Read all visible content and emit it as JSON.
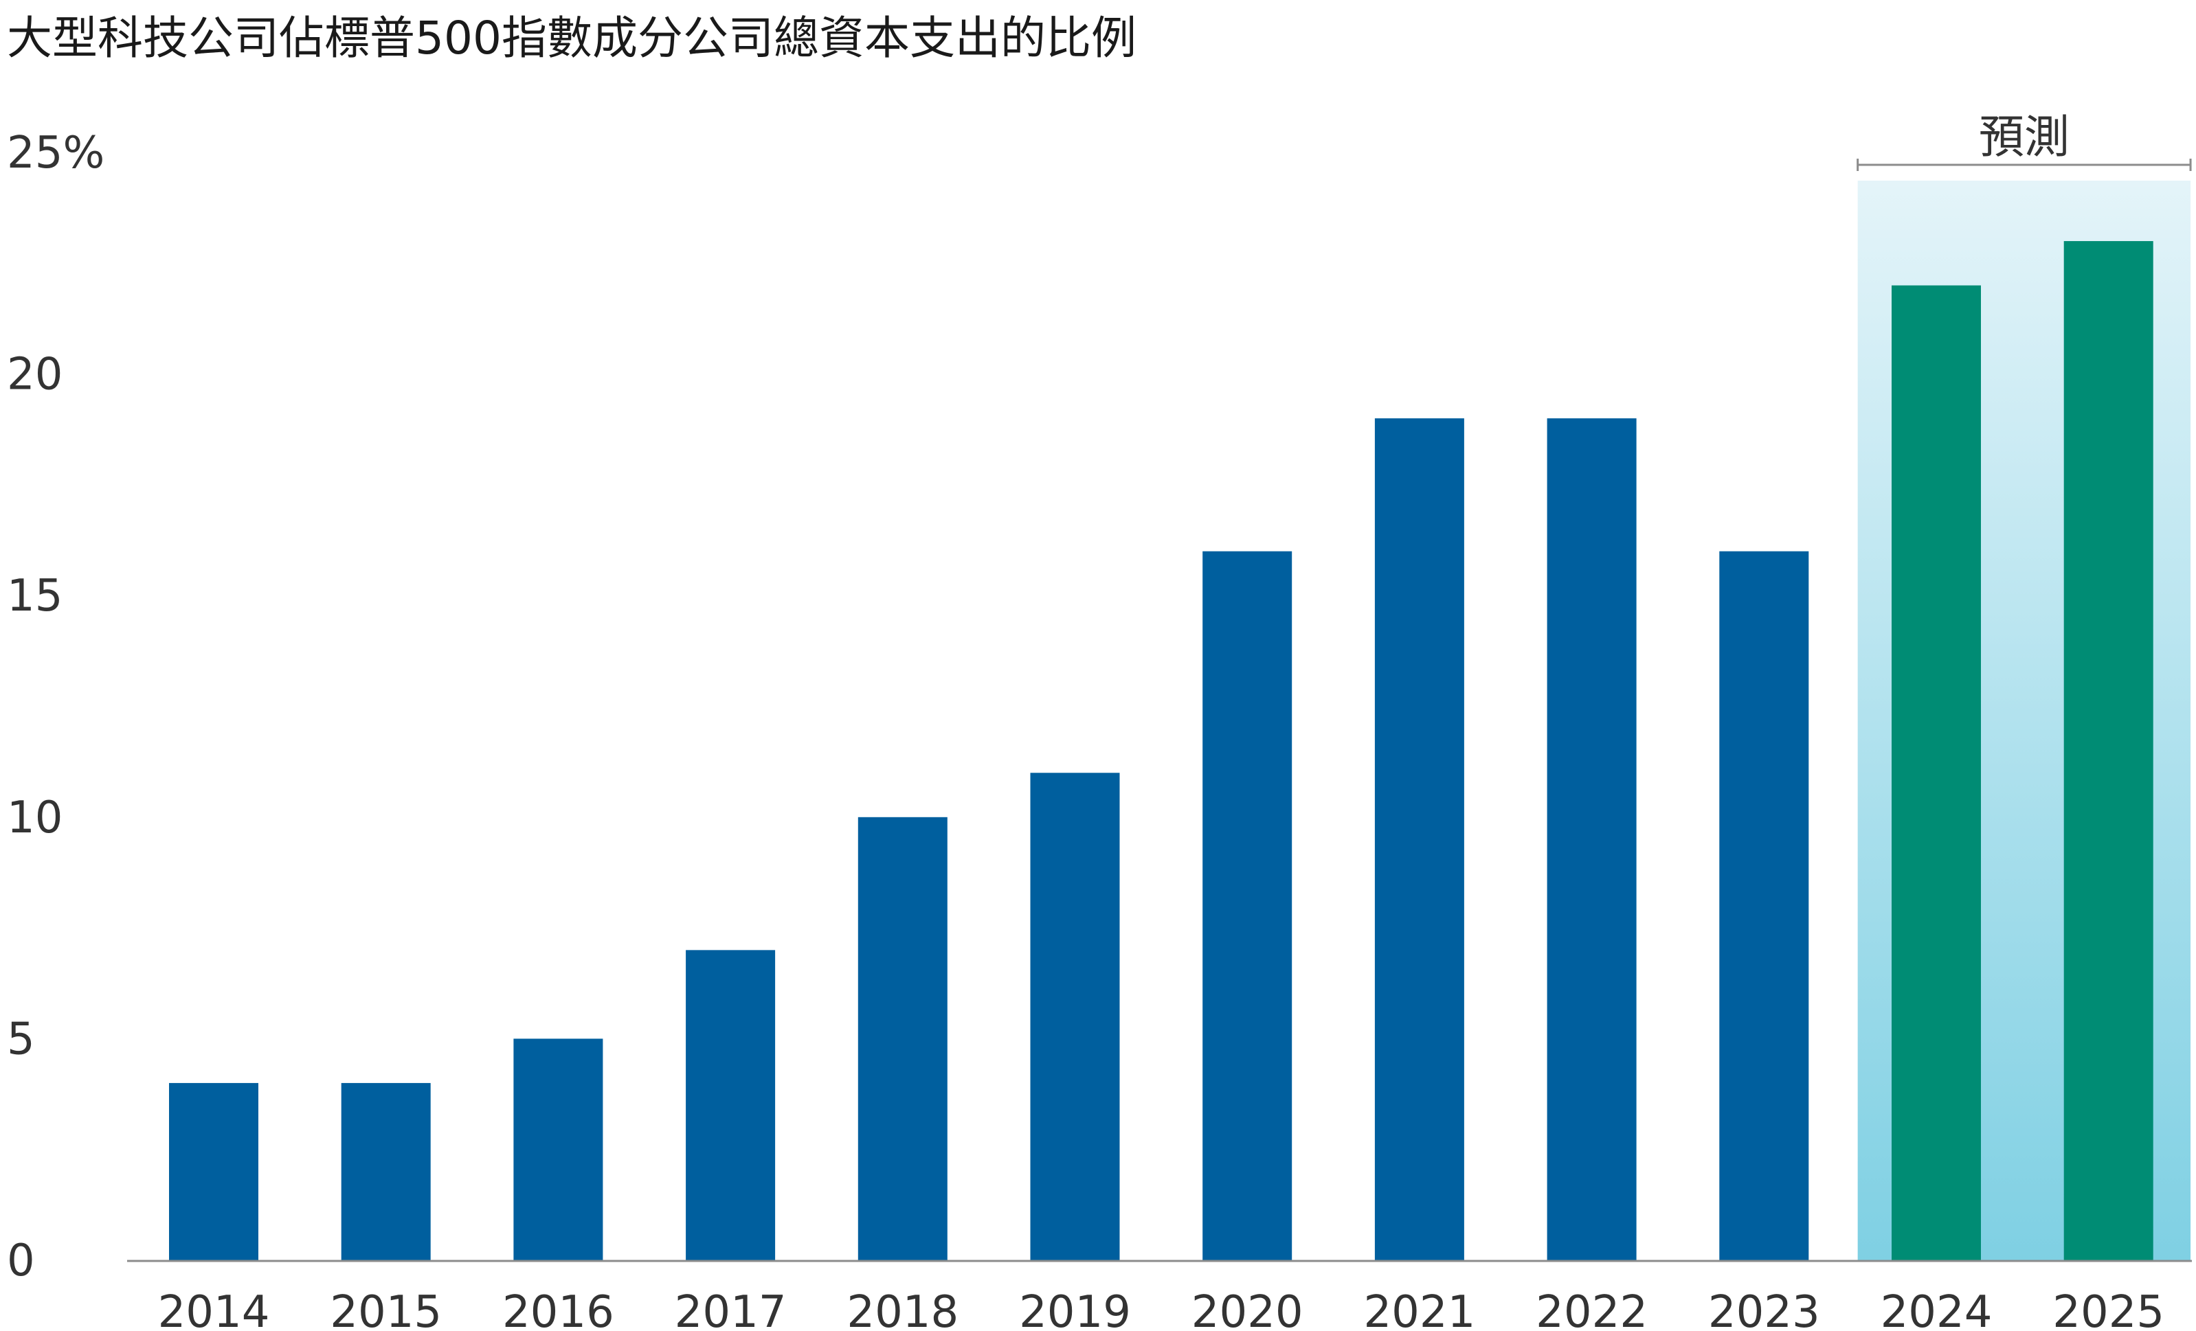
{
  "chart_data": {
    "type": "bar",
    "title": "大型科技公司佔標普500指數成分公司總資本支出的比例",
    "categories": [
      "2014",
      "2015",
      "2016",
      "2017",
      "2018",
      "2019",
      "2020",
      "2021",
      "2022",
      "2023",
      "2024",
      "2025"
    ],
    "values": [
      4,
      4,
      5,
      7,
      10,
      11,
      16,
      19,
      19,
      16,
      22,
      23
    ],
    "forecast_categories": [
      "2024",
      "2025"
    ],
    "forecast_label": "預測",
    "y_ticks": [
      "0",
      "5",
      "10",
      "15",
      "20",
      "25%"
    ],
    "ylim": [
      0,
      25
    ],
    "xlabel": "",
    "ylabel": "",
    "grid": false,
    "colors": {
      "actual": "#005f9e",
      "forecast": "#008c74",
      "forecast_band_top": "#e4f4f9",
      "forecast_band_bottom": "#7fd0e3",
      "axis": "#8c8c8c"
    }
  }
}
